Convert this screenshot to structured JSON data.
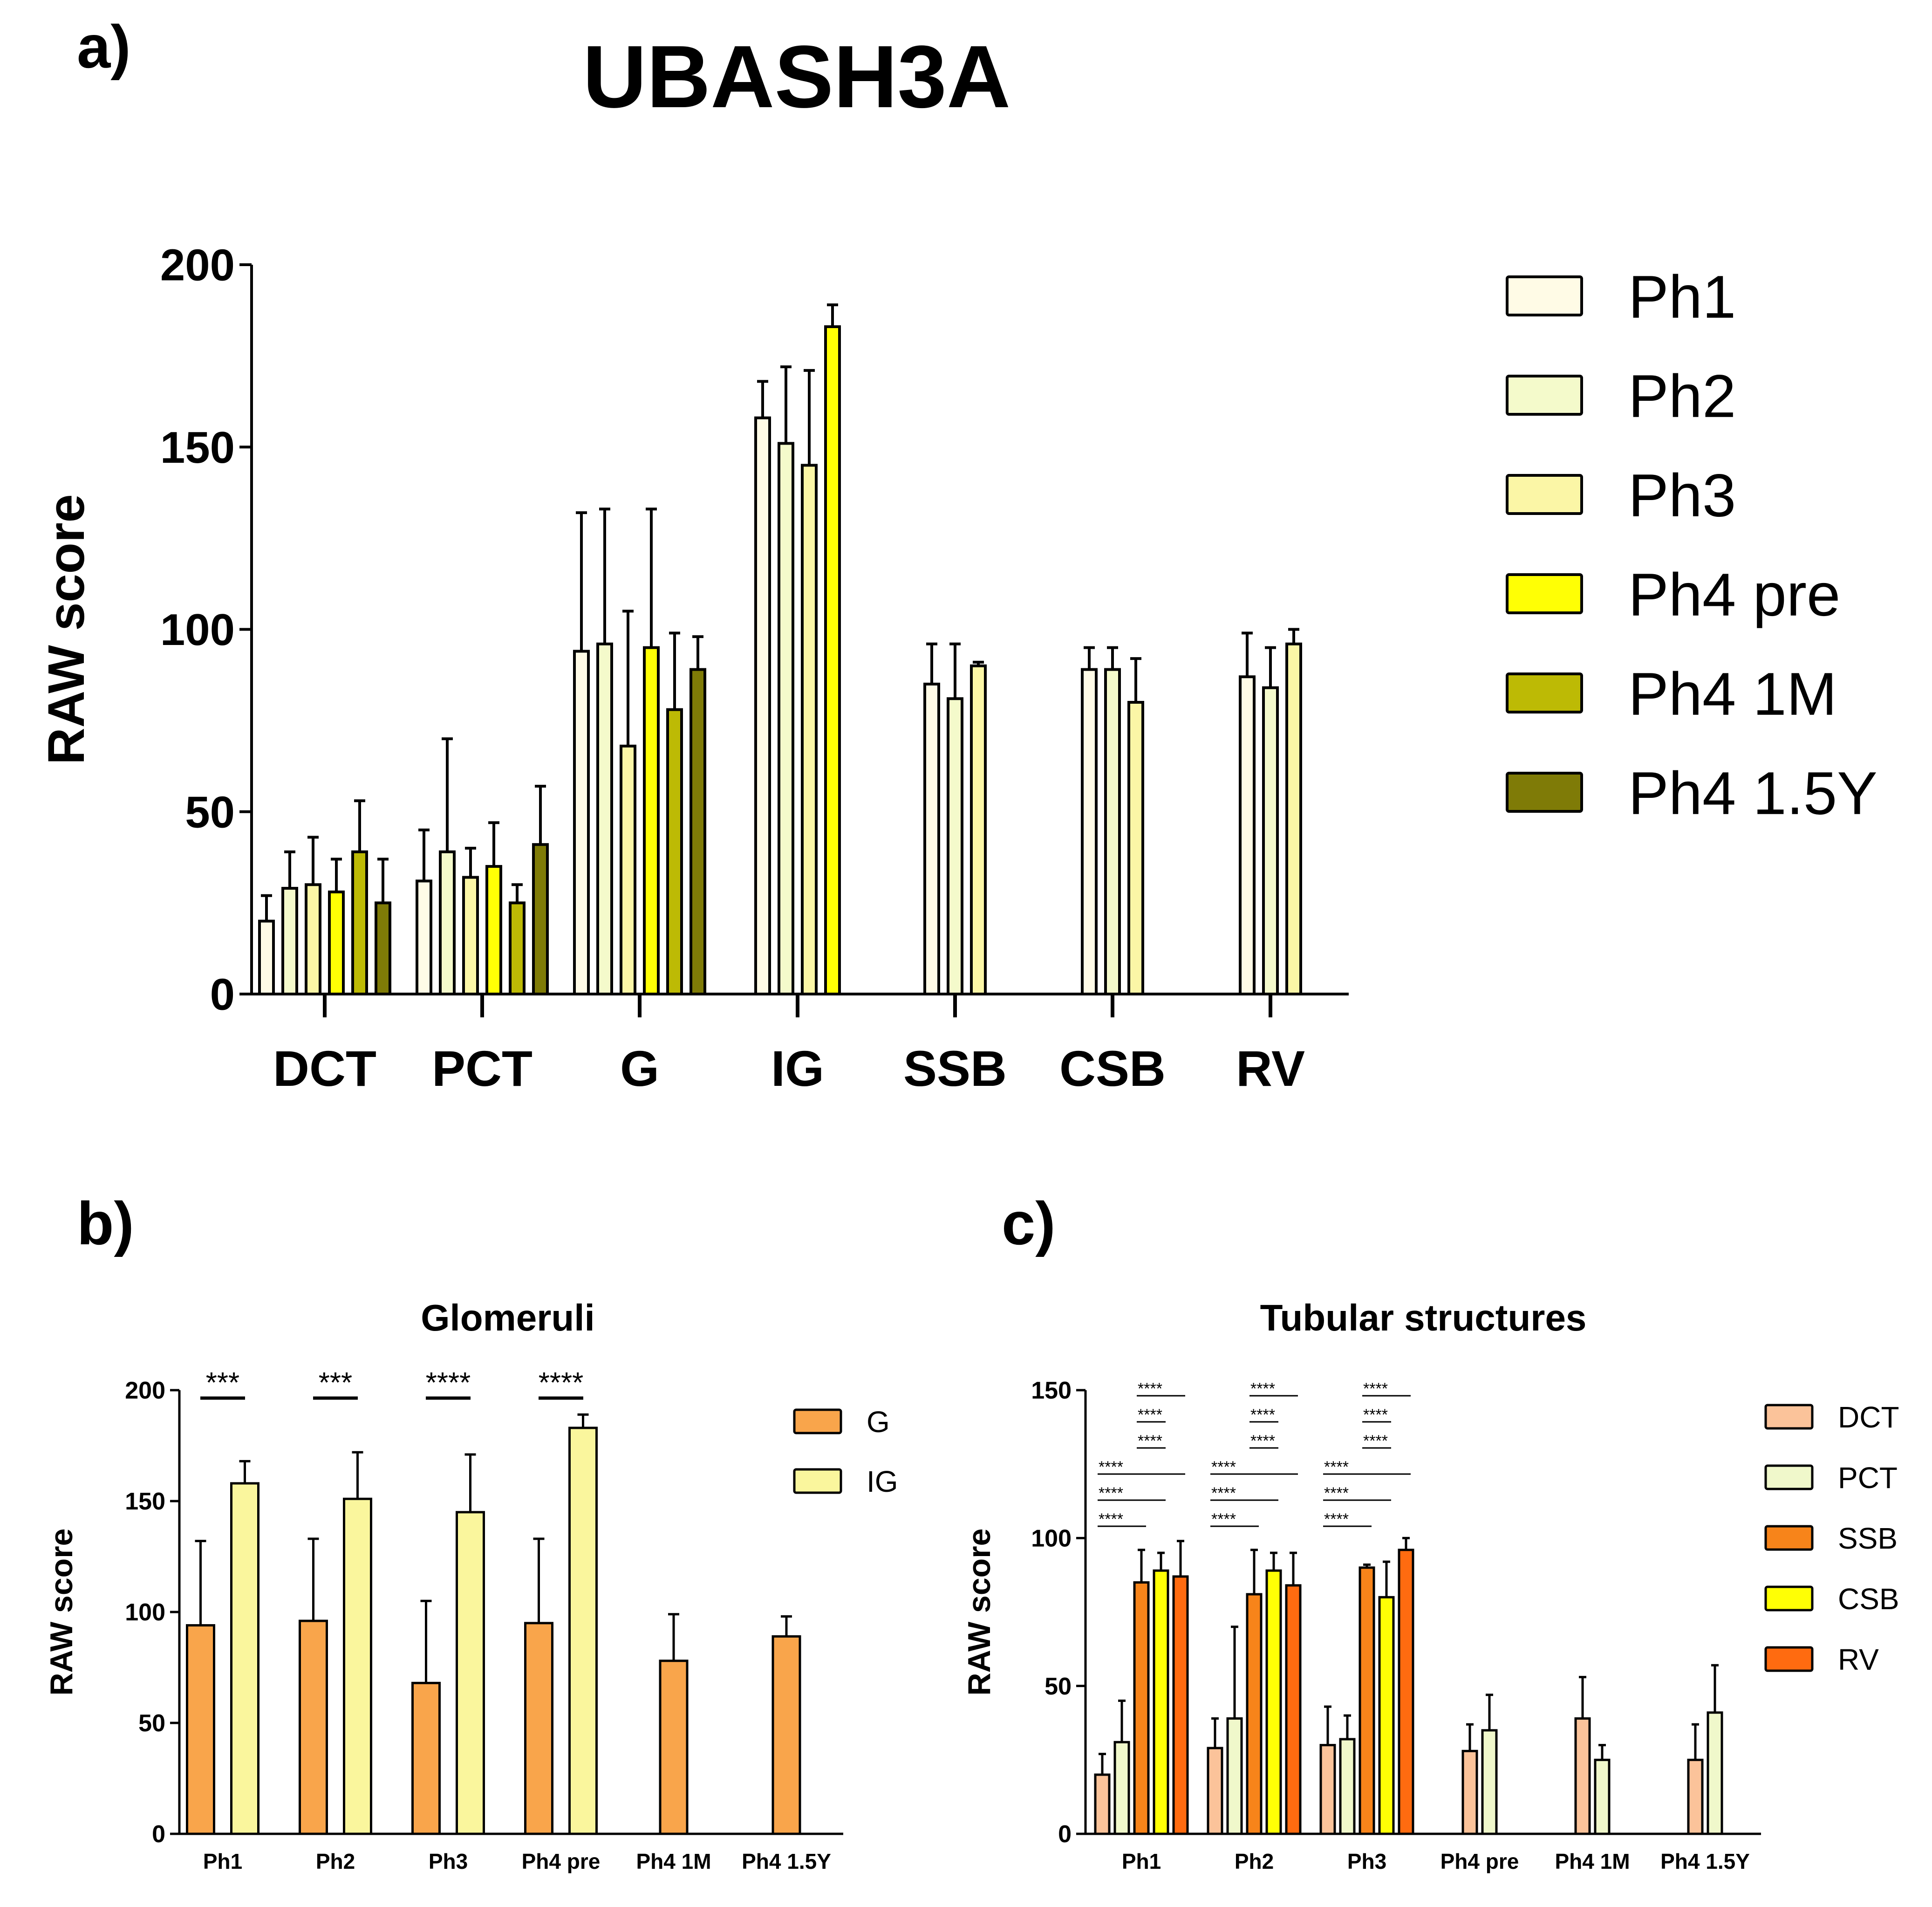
{
  "colors": {
    "Ph1": "#FFFBE6",
    "Ph2": "#F4FACB",
    "Ph3": "#FBF6A6",
    "Ph4 pre": "#FFFF05",
    "Ph4 1M": "#BDBA05",
    "Ph4 1.5Y": "#7F7B07",
    "G": "#F9A54B",
    "IG": "#FAF69D",
    "DCT": "#FBC39A",
    "PCT": "#F0F8CB",
    "SSB": "#F7841A",
    "CSB": "#FFFF05",
    "RV": "#FF6B10"
  },
  "chart_data": [
    {
      "panel": "a)",
      "type": "bar",
      "title": "UBASH3A",
      "xlabel": "",
      "ylabel": "RAW score",
      "ylim": [
        0,
        200
      ],
      "yticks": [
        0,
        50,
        100,
        150,
        200
      ],
      "categories": [
        "DCT",
        "PCT",
        "G",
        "IG",
        "SSB",
        "CSB",
        "RV"
      ],
      "legend_position": "right",
      "series": [
        {
          "name": "Ph1",
          "values": [
            20,
            31,
            94,
            158,
            85,
            89,
            87
          ],
          "errors": [
            7,
            14,
            38,
            10,
            11,
            6,
            12
          ]
        },
        {
          "name": "Ph2",
          "values": [
            29,
            39,
            96,
            151,
            81,
            89,
            84
          ],
          "errors": [
            10,
            31,
            37,
            21,
            15,
            6,
            11
          ]
        },
        {
          "name": "Ph3",
          "values": [
            30,
            32,
            68,
            145,
            90,
            80,
            96
          ],
          "errors": [
            13,
            8,
            37,
            26,
            1,
            12,
            4
          ]
        },
        {
          "name": "Ph4 pre",
          "values": [
            28,
            35,
            95,
            183,
            null,
            null,
            null
          ],
          "errors": [
            9,
            12,
            38,
            6,
            null,
            null,
            null
          ]
        },
        {
          "name": "Ph4 1M",
          "values": [
            39,
            25,
            78,
            null,
            null,
            null,
            null
          ],
          "errors": [
            14,
            5,
            21,
            null,
            null,
            null,
            null
          ]
        },
        {
          "name": "Ph4 1.5Y",
          "values": [
            25,
            41,
            89,
            null,
            null,
            null,
            null
          ],
          "errors": [
            12,
            16,
            9,
            null,
            null,
            null,
            null
          ]
        }
      ]
    },
    {
      "panel": "b)",
      "type": "bar",
      "title": "Glomeruli",
      "xlabel": "",
      "ylabel": "RAW score",
      "ylim": [
        0,
        200
      ],
      "yticks": [
        0,
        50,
        100,
        150,
        200
      ],
      "categories": [
        "Ph1",
        "Ph2",
        "Ph3",
        "Ph4 pre",
        "Ph4 1M",
        "Ph4 1.5Y"
      ],
      "legend_position": "top-right",
      "series": [
        {
          "name": "G",
          "values": [
            94,
            96,
            68,
            95,
            78,
            89
          ],
          "errors": [
            38,
            37,
            37,
            38,
            21,
            9
          ]
        },
        {
          "name": "IG",
          "values": [
            158,
            151,
            145,
            183,
            null,
            null
          ],
          "errors": [
            10,
            21,
            26,
            6,
            null,
            null
          ]
        }
      ],
      "significance": [
        {
          "group": 0,
          "label": "***"
        },
        {
          "group": 1,
          "label": "***"
        },
        {
          "group": 2,
          "label": "****"
        },
        {
          "group": 3,
          "label": "****"
        }
      ]
    },
    {
      "panel": "c)",
      "type": "bar",
      "title": "Tubular structures",
      "xlabel": "",
      "ylabel": "RAW score",
      "ylim": [
        0,
        150
      ],
      "yticks": [
        0,
        50,
        100,
        150
      ],
      "categories": [
        "Ph1",
        "Ph2",
        "Ph3",
        "Ph4 pre",
        "Ph4 1M",
        "Ph4 1.5Y"
      ],
      "legend_position": "top-right",
      "series": [
        {
          "name": "DCT",
          "values": [
            20,
            29,
            30,
            28,
            39,
            25
          ],
          "errors": [
            7,
            10,
            13,
            9,
            14,
            12
          ]
        },
        {
          "name": "PCT",
          "values": [
            31,
            39,
            32,
            35,
            25,
            41
          ],
          "errors": [
            14,
            31,
            8,
            12,
            5,
            16
          ]
        },
        {
          "name": "SSB",
          "values": [
            85,
            81,
            90,
            null,
            null,
            null
          ],
          "errors": [
            11,
            15,
            1,
            null,
            null,
            null
          ]
        },
        {
          "name": "CSB",
          "values": [
            89,
            89,
            80,
            null,
            null,
            null
          ],
          "errors": [
            6,
            6,
            12,
            null,
            null,
            null
          ]
        },
        {
          "name": "RV",
          "values": [
            87,
            84,
            96,
            null,
            null,
            null
          ],
          "errors": [
            12,
            11,
            4,
            null,
            null,
            null
          ]
        }
      ],
      "significance": [
        {
          "group": 0,
          "from": 2,
          "to": 4,
          "label": "****"
        },
        {
          "group": 0,
          "from": 2,
          "to": 3,
          "label": "****"
        },
        {
          "group": 0,
          "from": 2,
          "to": 3,
          "label": "****"
        },
        {
          "group": 0,
          "from": 0,
          "to": 4,
          "label": "****"
        },
        {
          "group": 0,
          "from": 0,
          "to": 3,
          "label": "****"
        },
        {
          "group": 0,
          "from": 0,
          "to": 2,
          "label": "****"
        },
        {
          "group": 1,
          "from": 2,
          "to": 4,
          "label": "****"
        },
        {
          "group": 1,
          "from": 2,
          "to": 3,
          "label": "****"
        },
        {
          "group": 1,
          "from": 2,
          "to": 3,
          "label": "****"
        },
        {
          "group": 1,
          "from": 0,
          "to": 4,
          "label": "****"
        },
        {
          "group": 1,
          "from": 0,
          "to": 3,
          "label": "****"
        },
        {
          "group": 1,
          "from": 0,
          "to": 2,
          "label": "****"
        },
        {
          "group": 2,
          "from": 2,
          "to": 4,
          "label": "****"
        },
        {
          "group": 2,
          "from": 2,
          "to": 3,
          "label": "****"
        },
        {
          "group": 2,
          "from": 2,
          "to": 3,
          "label": "****"
        },
        {
          "group": 2,
          "from": 0,
          "to": 4,
          "label": "****"
        },
        {
          "group": 2,
          "from": 0,
          "to": 3,
          "label": "****"
        },
        {
          "group": 2,
          "from": 0,
          "to": 2,
          "label": "****"
        }
      ]
    }
  ]
}
